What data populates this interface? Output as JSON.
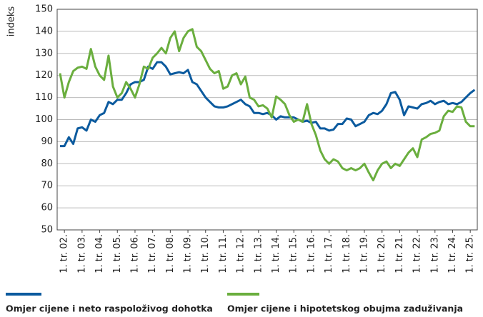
{
  "chart_data": {
    "type": "line",
    "y_label": "indeks",
    "categories": [
      null,
      "1. tr. 02.",
      null,
      null,
      null,
      "1. tr. 03.",
      null,
      null,
      null,
      "1. tr. 04.",
      null,
      null,
      null,
      "1. tr. 05.",
      null,
      null,
      null,
      "1. tr. 06.",
      null,
      null,
      null,
      "1. tr. 07.",
      null,
      null,
      null,
      "1. tr. 08.",
      null,
      null,
      null,
      "1. tr. 09.",
      null,
      null,
      null,
      "1. tr. 10.",
      null,
      null,
      null,
      "1. tr. 11.",
      null,
      null,
      null,
      "1. tr. 12.",
      null,
      null,
      null,
      "1. tr. 13.",
      null,
      null,
      null,
      "1. tr. 14.",
      null,
      null,
      null,
      "1. tr. 15.",
      null,
      null,
      null,
      "1. tr. 16.",
      null,
      null,
      null,
      "1. tr. 17.",
      null,
      null,
      null,
      "1. tr. 18.",
      null,
      null,
      null,
      "1. tr. 19.",
      null,
      null,
      null,
      "1. tr. 20.",
      null,
      null,
      null,
      "1. tr. 21.",
      null,
      null,
      null,
      "1. tr. 22.",
      null,
      null,
      null,
      "1. tr. 23.",
      null,
      null,
      null,
      "1. tr. 24.",
      null,
      null,
      null,
      "1. tr. 25.",
      null
    ],
    "series": [
      {
        "name": "Omjer cijene i neto raspoloživog dohotka",
        "color": "#0b5a9e",
        "values": [
          88,
          88,
          92,
          89,
          96,
          96.5,
          95,
          100,
          99,
          102,
          103,
          108,
          107,
          109,
          109,
          112,
          116,
          117,
          117,
          118,
          124,
          123,
          126,
          126,
          124,
          120.5,
          121,
          121.5,
          121,
          122.5,
          117,
          116,
          113,
          110,
          108,
          106,
          105.5,
          105.5,
          106,
          107,
          108,
          109,
          107,
          106,
          103,
          103,
          102.5,
          103,
          102,
          100,
          101.5,
          101,
          101,
          101,
          100,
          99,
          99.5,
          98.5,
          99,
          96,
          96,
          95,
          95.5,
          98,
          98,
          100.5,
          100,
          97,
          98,
          99,
          102,
          103,
          102.5,
          104,
          107,
          112,
          112.5,
          109,
          102,
          106,
          105.5,
          105,
          107,
          107.5,
          108.5,
          107,
          108,
          108.5,
          107,
          107.5,
          107,
          108,
          110,
          112,
          113.5
        ]
      },
      {
        "name": "Omjer cijene i hipotetskog obujma zaduživanja",
        "color": "#6aae3e",
        "values": [
          121,
          110,
          117,
          122,
          123.5,
          124,
          123,
          132,
          124,
          120,
          118,
          129,
          115,
          110,
          112,
          117,
          114,
          110,
          116,
          124,
          123,
          128,
          130,
          132.5,
          130,
          137,
          140,
          131,
          137,
          140,
          141,
          133,
          131,
          127,
          123,
          121,
          122,
          114,
          115,
          120,
          121,
          116,
          119.5,
          110,
          109,
          106,
          106.5,
          105,
          101,
          110.5,
          109,
          107,
          102,
          99,
          100,
          99,
          107,
          98,
          93,
          86,
          82,
          80,
          82,
          81,
          78,
          77,
          78,
          77,
          78,
          80,
          76,
          72.5,
          77,
          80,
          81,
          78,
          80,
          79,
          82,
          85,
          87,
          83,
          91,
          92,
          93.5,
          94,
          95,
          101.5,
          104,
          103.5,
          106,
          105.5,
          99,
          97,
          97
        ]
      }
    ],
    "ylim": [
      50,
      150
    ],
    "yticks": [
      50,
      60,
      70,
      80,
      90,
      100,
      110,
      120,
      130,
      140,
      150
    ],
    "grid": true,
    "legend": "bottom"
  }
}
